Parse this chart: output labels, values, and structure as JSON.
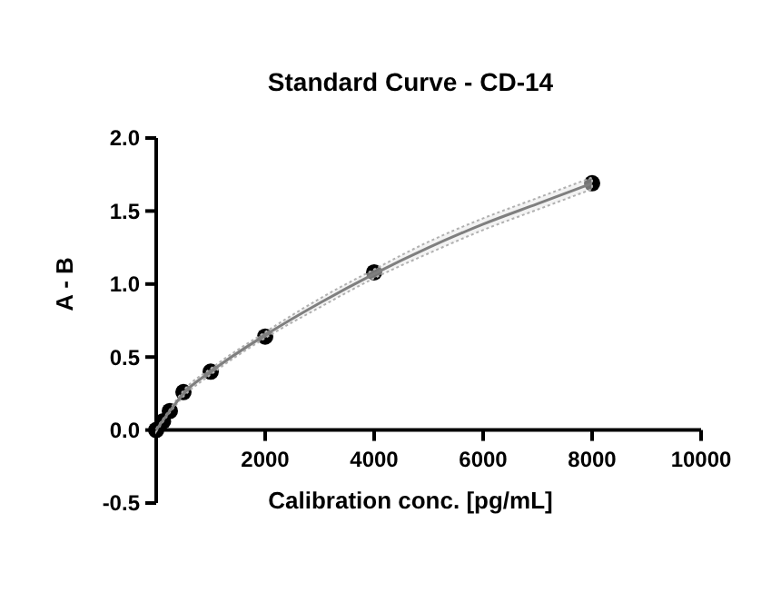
{
  "chart_data": {
    "type": "scatter",
    "title": "Standard Curve - CD-14",
    "xlabel": "Calibration conc. [pg/mL]",
    "ylabel": "A - B",
    "xlim": [
      0,
      10000
    ],
    "xticks": [
      2000,
      4000,
      6000,
      8000,
      10000
    ],
    "ylim": [
      -0.5,
      2.0
    ],
    "yticks": [
      -0.5,
      {
        "value": 0,
        "label": "0.0"
      },
      0.5,
      {
        "value": 1,
        "label": "1.0"
      },
      1.5,
      {
        "value": 2,
        "label": "2.0"
      }
    ],
    "grid": false,
    "marker": "circle",
    "series": [
      {
        "type": "scatter",
        "color": "#000000",
        "x": [
          0,
          125,
          250,
          500,
          1000,
          2000,
          4000,
          8000
        ],
        "values": [
          0,
          0.06,
          0.13,
          0.26,
          0.4,
          0.64,
          1.08,
          1.69
        ]
      },
      {
        "type": "line",
        "color": "#7f7f7f",
        "line_style": "solid",
        "marker": "none",
        "x": [
          0,
          250,
          500,
          1000,
          2000,
          3000,
          4000,
          5000,
          6000,
          7000,
          8000
        ],
        "values": [
          0,
          0.13,
          0.25,
          0.4,
          0.65,
          0.87,
          1.07,
          1.25,
          1.41,
          1.55,
          1.69
        ],
        "lower": [
          -0.01,
          0.12,
          0.23,
          0.38,
          0.63,
          0.84,
          1.04,
          1.21,
          1.37,
          1.51,
          1.65
        ],
        "upper": [
          0.01,
          0.14,
          0.27,
          0.42,
          0.67,
          0.9,
          1.1,
          1.29,
          1.45,
          1.59,
          1.73
        ]
      }
    ]
  }
}
